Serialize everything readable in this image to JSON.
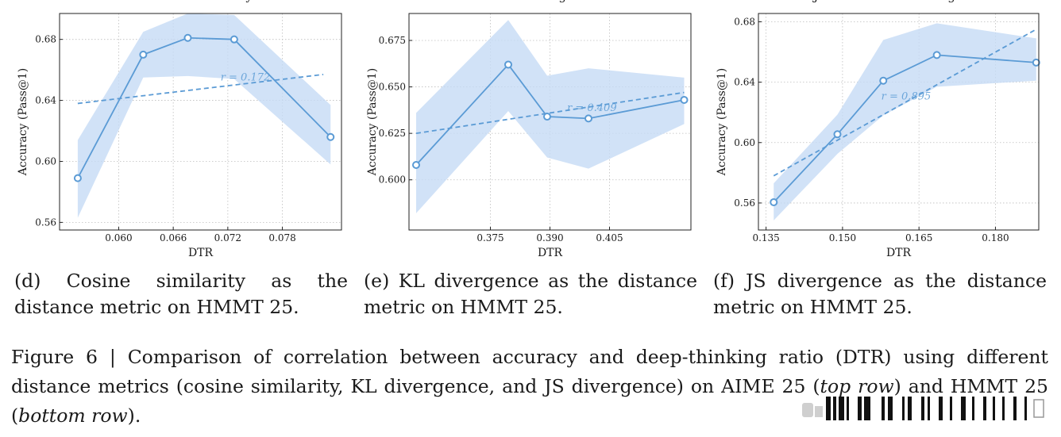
{
  "chart_data": [
    {
      "type": "line",
      "title": "",
      "xlabel": "DTR",
      "ylabel": "Accuracy (Pass@1)",
      "xlim": [
        0.0535,
        0.0845
      ],
      "ylim": [
        0.555,
        0.697
      ],
      "xticks": [
        "0.060",
        "0.066",
        "0.072",
        "0.078"
      ],
      "yticks": [
        "0.56",
        "0.60",
        "0.64",
        "0.68"
      ],
      "xtick_values": [
        0.06,
        0.066,
        0.072,
        0.078
      ],
      "ytick_values": [
        0.56,
        0.6,
        0.64,
        0.68
      ],
      "grid": true,
      "x": [
        0.0555,
        0.0627,
        0.0676,
        0.0727,
        0.0833
      ],
      "y": [
        0.589,
        0.67,
        0.681,
        0.68,
        0.616
      ],
      "band_lower": [
        0.563,
        0.655,
        0.656,
        0.654,
        0.598
      ],
      "band_upper": [
        0.614,
        0.685,
        0.697,
        0.696,
        0.637
      ],
      "trend": [
        [
          0.0555,
          0.638
        ],
        [
          0.0825,
          0.657
        ]
      ],
      "annotation": "r = 0.172",
      "annotation_at": [
        0.0712,
        0.653
      ]
    },
    {
      "type": "line",
      "title": "",
      "xlabel": "DTR",
      "ylabel": "Accuracy (Pass@1)",
      "xlim": [
        0.3545,
        0.4255
      ],
      "ylim": [
        0.573,
        0.6895
      ],
      "xticks": [
        "0.375",
        "0.390",
        "0.405"
      ],
      "yticks": [
        "0.600",
        "0.625",
        "0.650",
        "0.675"
      ],
      "xtick_values": [
        0.375,
        0.39,
        0.405
      ],
      "ytick_values": [
        0.6,
        0.625,
        0.65,
        0.675
      ],
      "grid": true,
      "x": [
        0.3563,
        0.3795,
        0.3893,
        0.3997,
        0.4238
      ],
      "y": [
        0.608,
        0.662,
        0.634,
        0.633,
        0.643
      ],
      "band_lower": [
        0.582,
        0.637,
        0.612,
        0.606,
        0.63
      ],
      "band_upper": [
        0.636,
        0.686,
        0.656,
        0.66,
        0.655
      ],
      "trend": [
        [
          0.3563,
          0.625
        ],
        [
          0.4238,
          0.647
        ]
      ],
      "annotation": "r = 0.409",
      "annotation_at": [
        0.3943,
        0.637
      ]
    },
    {
      "type": "line",
      "title": "",
      "xlabel": "DTR",
      "ylabel": "Accuracy (Pass@1)",
      "xlim": [
        0.1335,
        0.1885
      ],
      "ylim": [
        0.5421,
        0.6855
      ],
      "xticks": [
        "0.135",
        "0.150",
        "0.165",
        "0.180"
      ],
      "yticks": [
        "0.56",
        "0.60",
        "0.64",
        "0.68"
      ],
      "xtick_values": [
        0.135,
        0.15,
        0.165,
        0.18
      ],
      "ytick_values": [
        0.56,
        0.6,
        0.64,
        0.68
      ],
      "grid": true,
      "x": [
        0.1365,
        0.149,
        0.158,
        0.1685,
        0.188
      ],
      "y": [
        0.5605,
        0.6055,
        0.641,
        0.658,
        0.653
      ],
      "band_lower": [
        0.5485,
        0.5925,
        0.618,
        0.637,
        0.641
      ],
      "band_upper": [
        0.573,
        0.6185,
        0.668,
        0.679,
        0.669
      ],
      "trend": [
        [
          0.1365,
          0.578
        ],
        [
          0.188,
          0.675
        ]
      ],
      "annotation": "r = 0.895",
      "annotation_at": [
        0.1576,
        0.6285
      ]
    }
  ],
  "titles_clipped": [
    "Cosine Similarity",
    "KL Divergence",
    "Jensen-Shannon Divergence"
  ],
  "captions": [
    "(d) Cosine similarity as the distance metric on HMMT 25.",
    "(e) KL divergence as the distance metric on HMMT 25.",
    "(f) JS divergence as the distance metric on HMMT 25."
  ],
  "figure_caption": {
    "prefix": "Figure 6 | Comparison of correlation between accuracy and deep-thinking ratio (DTR) using different distance metrics (cosine similarity, KL divergence, and JS divergence) on AIME 25 (",
    "top_row": "top row",
    "middle": ") and HMMT 25 (",
    "bottom_row": "bottom row",
    "suffix": ")."
  },
  "colors": {
    "line": "#5b9bd5",
    "band": "#c6dbf5",
    "grid": "#bdbdbd",
    "text": "#1a1a1a"
  }
}
